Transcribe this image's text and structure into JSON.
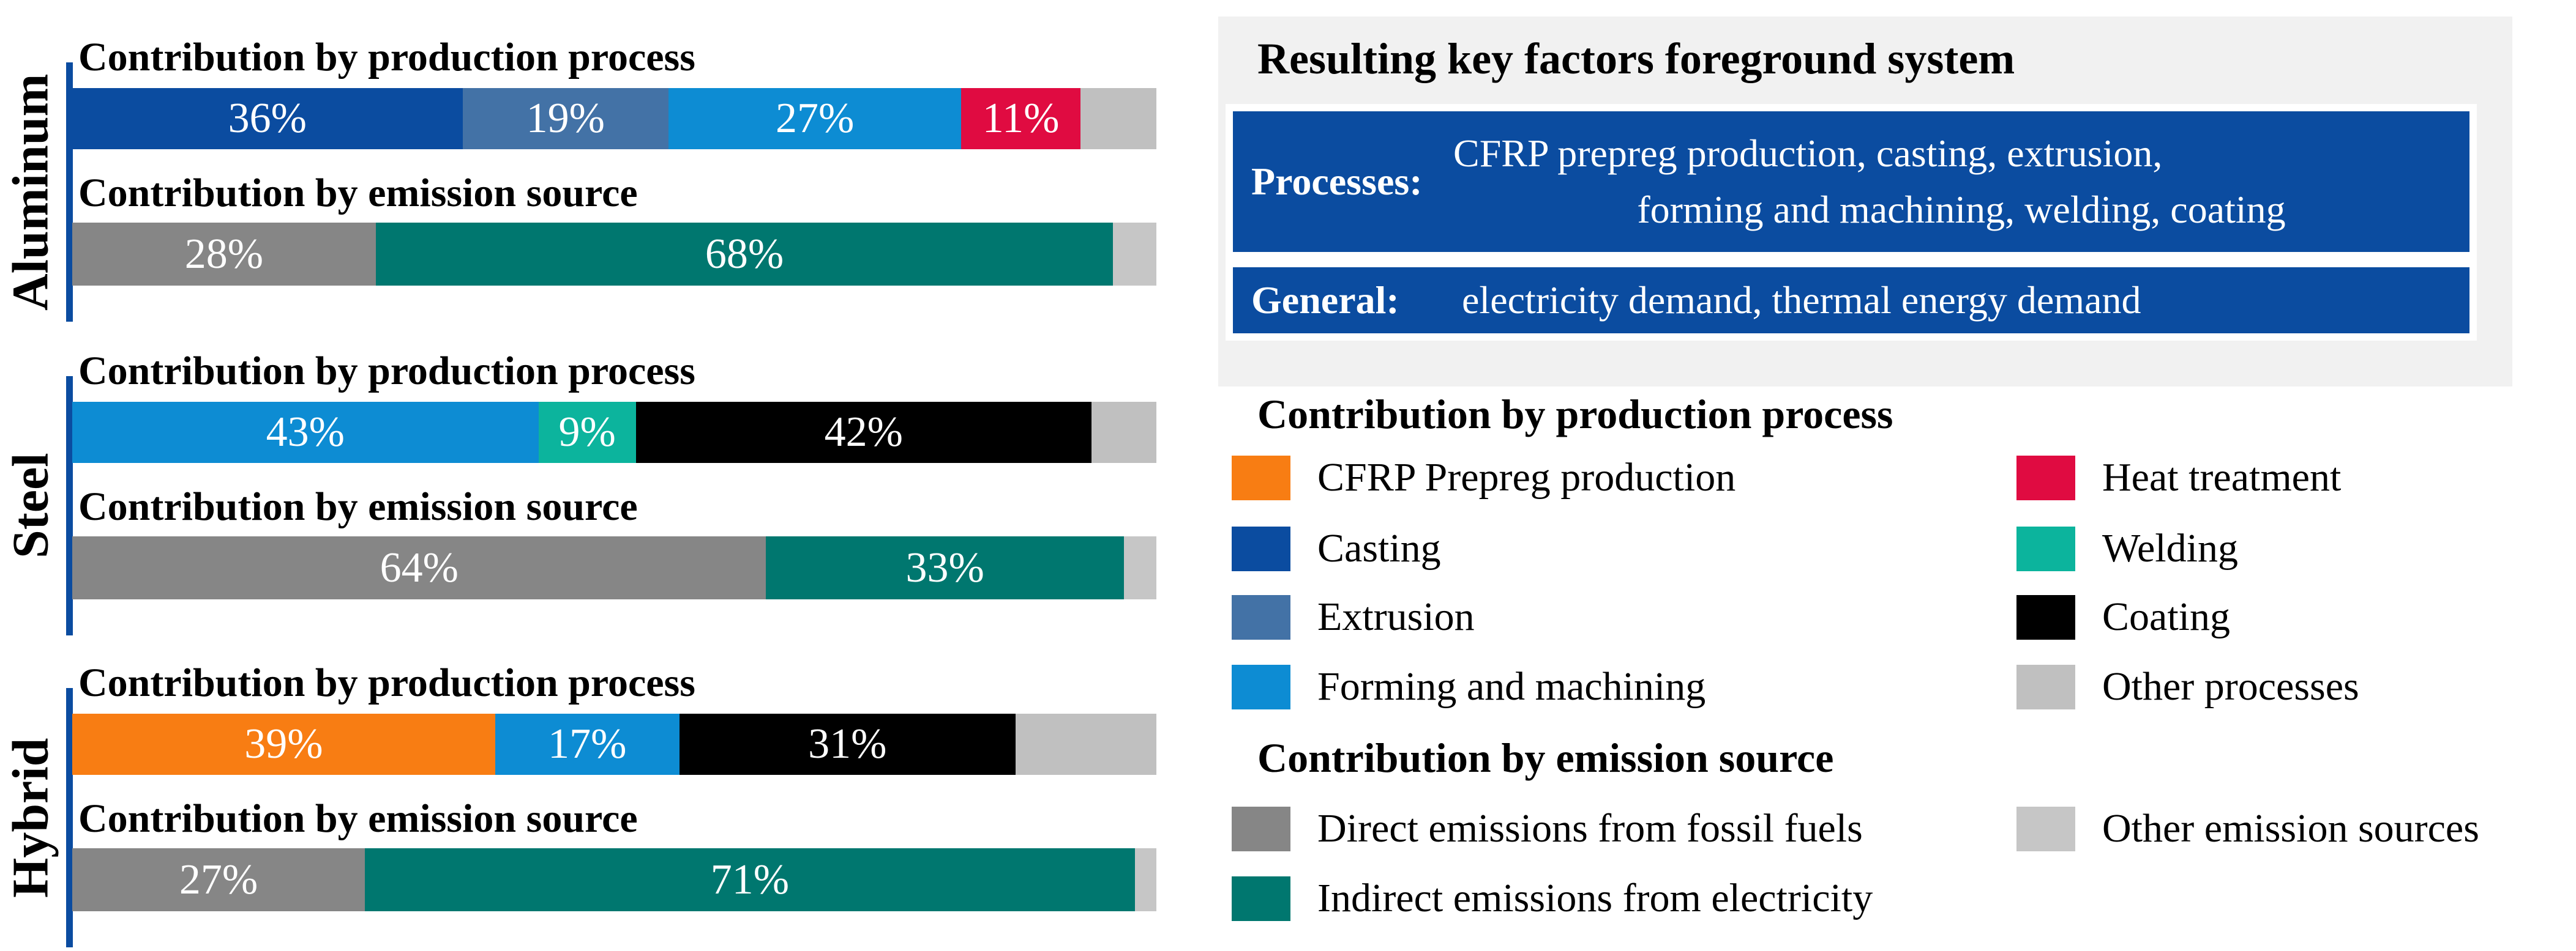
{
  "colors": {
    "cfrp": "#F87D13",
    "casting": "#0B4CA0",
    "extrusion": "#4372A6",
    "forming": "#0D8CD3",
    "heat": "#E00B41",
    "welding": "#0CB49D",
    "coating": "#000000",
    "other_process": "#C0C0C0",
    "direct": "#868686",
    "indirect": "#00776F",
    "other_emission": "#C6C6C6",
    "axis": "#0B4CA0",
    "panel_bg": "#F1F1F1",
    "box_blue": "#0B4CA0",
    "box_text": "#FFFFFF"
  },
  "key_factors": {
    "title": "Resulting key factors foreground system",
    "rows": [
      {
        "label": "Processes:",
        "lines": [
          "CFRP prepreg production, casting, extrusion,",
          "forming and machining, welding, coating"
        ]
      },
      {
        "label": "General:",
        "lines": [
          "electricity demand, thermal energy demand"
        ]
      }
    ]
  },
  "legend": {
    "production": {
      "heading": "Contribution by production process",
      "items": [
        {
          "label": "CFRP Prepreg production",
          "color_key": "cfrp",
          "col": 1
        },
        {
          "label": "Casting",
          "color_key": "casting",
          "col": 1
        },
        {
          "label": "Extrusion",
          "color_key": "extrusion",
          "col": 1
        },
        {
          "label": "Forming and machining",
          "color_key": "forming",
          "col": 1
        },
        {
          "label": "Heat treatment",
          "color_key": "heat",
          "col": 2
        },
        {
          "label": "Welding",
          "color_key": "welding",
          "col": 2
        },
        {
          "label": "Coating",
          "color_key": "coating",
          "col": 2
        },
        {
          "label": "Other processes",
          "color_key": "other_process",
          "col": 2
        }
      ]
    },
    "emission": {
      "heading": "Contribution by emission source",
      "items": [
        {
          "label": "Direct emissions from fossil fuels",
          "color_key": "direct",
          "col": 1
        },
        {
          "label": "Indirect emissions from electricity",
          "color_key": "indirect",
          "col": 1
        },
        {
          "label": "Other emission sources",
          "color_key": "other_emission",
          "col": 2
        }
      ]
    }
  },
  "chart_data": {
    "type": "bar",
    "subtype": "horizontal-stacked-percentage",
    "value_range": [
      0,
      100
    ],
    "legend_position": "right",
    "grid": false,
    "groups": [
      {
        "material": "Aluminum",
        "bars": [
          {
            "title": "Contribution by production process",
            "segments": [
              {
                "category": "Casting",
                "value_pct": 36,
                "label": "36%",
                "color_key": "casting"
              },
              {
                "category": "Extrusion",
                "value_pct": 19,
                "label": "19%",
                "color_key": "extrusion"
              },
              {
                "category": "Forming and machining",
                "value_pct": 27,
                "label": "27%",
                "color_key": "forming"
              },
              {
                "category": "Heat treatment",
                "value_pct": 11,
                "label": "11%",
                "color_key": "heat"
              },
              {
                "category": "Other processes",
                "value_pct": 7,
                "label": "",
                "color_key": "other_process"
              }
            ]
          },
          {
            "title": "Contribution by emission source",
            "segments": [
              {
                "category": "Direct emissions from fossil fuels",
                "value_pct": 28,
                "label": "28%",
                "color_key": "direct"
              },
              {
                "category": "Indirect emissions from electricity",
                "value_pct": 68,
                "label": "68%",
                "color_key": "indirect"
              },
              {
                "category": "Other emission sources",
                "value_pct": 4,
                "label": "",
                "color_key": "other_emission"
              }
            ]
          }
        ]
      },
      {
        "material": "Steel",
        "bars": [
          {
            "title": "Contribution by production process",
            "segments": [
              {
                "category": "Forming and machining",
                "value_pct": 43,
                "label": "43%",
                "color_key": "forming"
              },
              {
                "category": "Welding",
                "value_pct": 9,
                "label": "9%",
                "color_key": "welding"
              },
              {
                "category": "Coating",
                "value_pct": 42,
                "label": "42%",
                "color_key": "coating"
              },
              {
                "category": "Other processes",
                "value_pct": 6,
                "label": "",
                "color_key": "other_process"
              }
            ]
          },
          {
            "title": "Contribution by emission source",
            "segments": [
              {
                "category": "Direct emissions from fossil fuels",
                "value_pct": 64,
                "label": "64%",
                "color_key": "direct"
              },
              {
                "category": "Indirect emissions from electricity",
                "value_pct": 33,
                "label": "33%",
                "color_key": "indirect"
              },
              {
                "category": "Other emission sources",
                "value_pct": 3,
                "label": "",
                "color_key": "other_emission"
              }
            ]
          }
        ]
      },
      {
        "material": "Hybrid",
        "bars": [
          {
            "title": "Contribution by production process",
            "segments": [
              {
                "category": "CFRP Prepreg production",
                "value_pct": 39,
                "label": "39%",
                "color_key": "cfrp"
              },
              {
                "category": "Forming and machining",
                "value_pct": 17,
                "label": "17%",
                "color_key": "forming"
              },
              {
                "category": "Coating",
                "value_pct": 31,
                "label": "31%",
                "color_key": "coating"
              },
              {
                "category": "Other processes",
                "value_pct": 13,
                "label": "",
                "color_key": "other_process"
              }
            ]
          },
          {
            "title": "Contribution by emission source",
            "segments": [
              {
                "category": "Direct emissions from fossil fuels",
                "value_pct": 27,
                "label": "27%",
                "color_key": "direct"
              },
              {
                "category": "Indirect emissions from electricity",
                "value_pct": 71,
                "label": "71%",
                "color_key": "indirect"
              },
              {
                "category": "Other emission sources",
                "value_pct": 2,
                "label": "",
                "color_key": "other_emission"
              }
            ]
          }
        ]
      }
    ]
  }
}
